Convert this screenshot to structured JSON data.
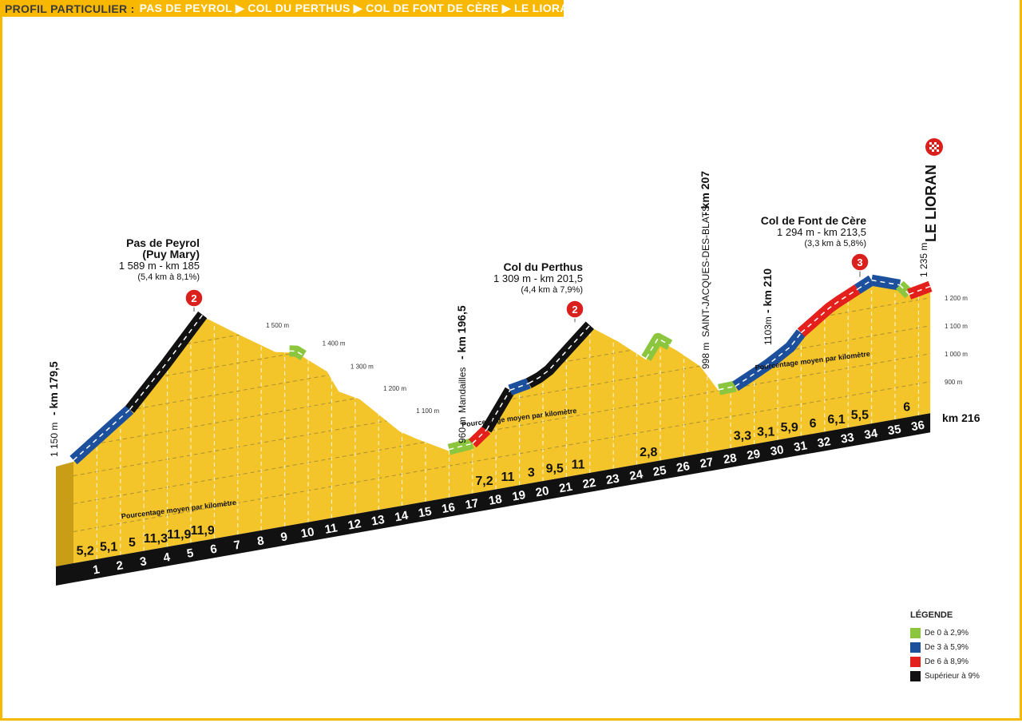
{
  "title": {
    "prefix": "PROFIL PARTICULIER :",
    "route": "PAS DE PEYROL ▶ COL DU PERTHUS ▶ COL DE FONT DE CÈRE ▶ LE LIORAN"
  },
  "chart_data": {
    "type": "area",
    "x_unit": "km",
    "y_unit": "m",
    "start_km": 179.5,
    "end_km": 216,
    "profile": {
      "km": [
        0,
        2.4,
        3.9,
        5.5,
        7.1,
        8.6,
        9.5,
        10.8,
        11.3,
        12.2,
        13.9,
        14.6,
        16,
        17,
        17.6,
        18.6,
        19.4,
        20.1,
        22,
        23.2,
        24.4,
        24.9,
        25.7,
        26.7,
        27.5,
        28.2,
        29.5,
        30.5,
        31,
        32.3,
        34,
        35.2,
        35.6,
        36.5
      ],
      "elevation": [
        1150,
        1296,
        1433,
        1589,
        1498,
        1416,
        1400,
        1314,
        1235,
        1194,
        1054,
        1018,
        953,
        960,
        1000,
        1127,
        1140,
        1162,
        1309,
        1239,
        1156,
        1219,
        1170,
        1099,
        998,
        1000,
        1053,
        1103,
        1150,
        1227,
        1294,
        1259,
        1220,
        1235
      ]
    },
    "km_ticks": [
      1,
      2,
      3,
      4,
      5,
      6,
      7,
      8,
      9,
      10,
      11,
      12,
      13,
      14,
      15,
      16,
      17,
      18,
      19,
      20,
      21,
      22,
      23,
      24,
      25,
      26,
      27,
      28,
      29,
      30,
      31,
      32,
      33,
      34,
      35,
      36
    ],
    "km_percentages": [
      {
        "km": 1,
        "pct": "5,2"
      },
      {
        "km": 2,
        "pct": "5,1"
      },
      {
        "km": 3,
        "pct": "5"
      },
      {
        "km": 4,
        "pct": "11,3"
      },
      {
        "km": 5,
        "pct": "11,9"
      },
      {
        "km": 6,
        "pct": "11,9"
      },
      {
        "km": 18,
        "pct": "7,2"
      },
      {
        "km": 19,
        "pct": "11"
      },
      {
        "km": 20,
        "pct": "3"
      },
      {
        "km": 21,
        "pct": "9,5"
      },
      {
        "km": 22,
        "pct": "11"
      },
      {
        "km": 25,
        "pct": "2,8"
      },
      {
        "km": 29,
        "pct": "3,3"
      },
      {
        "km": 30,
        "pct": "3,1"
      },
      {
        "km": 31,
        "pct": "5,9"
      },
      {
        "km": 32,
        "pct": "6"
      },
      {
        "km": 33,
        "pct": "6,1"
      },
      {
        "km": 34,
        "pct": "5,5"
      },
      {
        "km": 36,
        "pct": "6"
      }
    ],
    "road_segments": [
      {
        "from": 0,
        "to": 2.4,
        "cat": "blue"
      },
      {
        "from": 2.4,
        "to": 5.5,
        "cat": "black"
      },
      {
        "from": 9.2,
        "to": 9.8,
        "cat": "green"
      },
      {
        "from": 16,
        "to": 17,
        "cat": "green"
      },
      {
        "from": 17,
        "to": 17.6,
        "cat": "red"
      },
      {
        "from": 17.6,
        "to": 18.6,
        "cat": "black"
      },
      {
        "from": 18.6,
        "to": 19.4,
        "cat": "blue"
      },
      {
        "from": 19.4,
        "to": 22,
        "cat": "black"
      },
      {
        "from": 24.4,
        "to": 25.4,
        "cat": "green"
      },
      {
        "from": 27.5,
        "to": 28.2,
        "cat": "green"
      },
      {
        "from": 28.2,
        "to": 31,
        "cat": "blue"
      },
      {
        "from": 31,
        "to": 33.4,
        "cat": "red"
      },
      {
        "from": 33.4,
        "to": 34,
        "cat": "blue"
      },
      {
        "from": 34,
        "to": 35.2,
        "cat": "blue"
      },
      {
        "from": 35.2,
        "to": 35.6,
        "cat": "green"
      },
      {
        "from": 35.6,
        "to": 36.5,
        "cat": "red"
      }
    ],
    "grid_elevations": [
      900,
      1000,
      1100,
      1200,
      1300,
      1400,
      1500
    ],
    "right_axis_labels": [
      "1 200 m",
      "1 100 m",
      "1 000 m",
      "900 m"
    ],
    "inner_elevation_labels": [
      "1 500 m",
      "1 400 m",
      "1 300 m",
      "1 200 m",
      "1 100 m"
    ],
    "percent_caption": "Pourcentage moyen par kilomètre",
    "colors": {
      "green": "#8cc63f",
      "blue": "#1c4f9c",
      "red": "#e3201b",
      "black": "#111111",
      "fill": "#f4c52a",
      "side": "#c99d16"
    }
  },
  "climbs": [
    {
      "name": "Pas de Peyrol",
      "name2": "(Puy Mary)",
      "info": "1 589 m - km 185",
      "detail": "(5,4 km à 8,1%)",
      "category": "2",
      "km": 5.5
    },
    {
      "name": "Col du Perthus",
      "info": "1 309 m - km 201,5",
      "detail": "(4,4 km à 7,9%)",
      "category": "2",
      "km": 22
    },
    {
      "name": "Col de Font de Cère",
      "info": "1 294 m - km 213,5",
      "detail": "(3,3 km à 5,8%)",
      "category": "3",
      "km": 34
    }
  ],
  "waypoints": {
    "start_elev": "1 150 m",
    "start_km": "- km 179,5",
    "mandailles_elev": "960 m",
    "mandailles_name": "Mandailles",
    "mandailles_km": "- km 196,5",
    "sjdb_elev": "998 m",
    "sjdb_name": "SAINT-JACQUES-DES-BLATS",
    "sjdb_km": "- km 207",
    "km210_elev": "1103m",
    "km210_km": "- km 210",
    "finish_elev": "1 235 m",
    "finish_name": "LE LIORAN",
    "finish_km": "km 216"
  },
  "legend": {
    "title": "LÉGENDE",
    "items": [
      {
        "label": "De 0 à 2,9%",
        "color": "#8cc63f"
      },
      {
        "label": "De 3 à 5,9%",
        "color": "#1c4f9c"
      },
      {
        "label": "De 6 à 8,9%",
        "color": "#e3201b"
      },
      {
        "label": "Supérieur à 9%",
        "color": "#111111"
      }
    ]
  }
}
